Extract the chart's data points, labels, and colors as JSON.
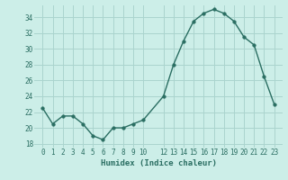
{
  "x": [
    0,
    1,
    2,
    3,
    4,
    5,
    6,
    7,
    8,
    9,
    10,
    12,
    13,
    14,
    15,
    16,
    17,
    18,
    19,
    20,
    21,
    22,
    23
  ],
  "y": [
    22.5,
    20.5,
    21.5,
    21.5,
    20.5,
    19.0,
    18.5,
    20.0,
    20.0,
    20.5,
    21.0,
    24.0,
    28.0,
    31.0,
    33.5,
    34.5,
    35.0,
    34.5,
    33.5,
    31.5,
    30.5,
    26.5,
    23.0
  ],
  "xlabel": "Humidex (Indice chaleur)",
  "ylim": [
    17.5,
    35.5
  ],
  "yticks": [
    18,
    20,
    22,
    24,
    26,
    28,
    30,
    32,
    34
  ],
  "xticks": [
    0,
    1,
    2,
    3,
    4,
    5,
    6,
    7,
    8,
    9,
    10,
    12,
    13,
    14,
    15,
    16,
    17,
    18,
    19,
    20,
    21,
    22,
    23
  ],
  "line_color": "#2a6e62",
  "marker_size": 2.5,
  "bg_color": "#cceee8",
  "grid_color": "#aad4ce",
  "tick_color": "#2a6e62",
  "xlabel_color": "#2a6e62",
  "tick_fontsize": 5.5,
  "xlabel_fontsize": 6.5
}
